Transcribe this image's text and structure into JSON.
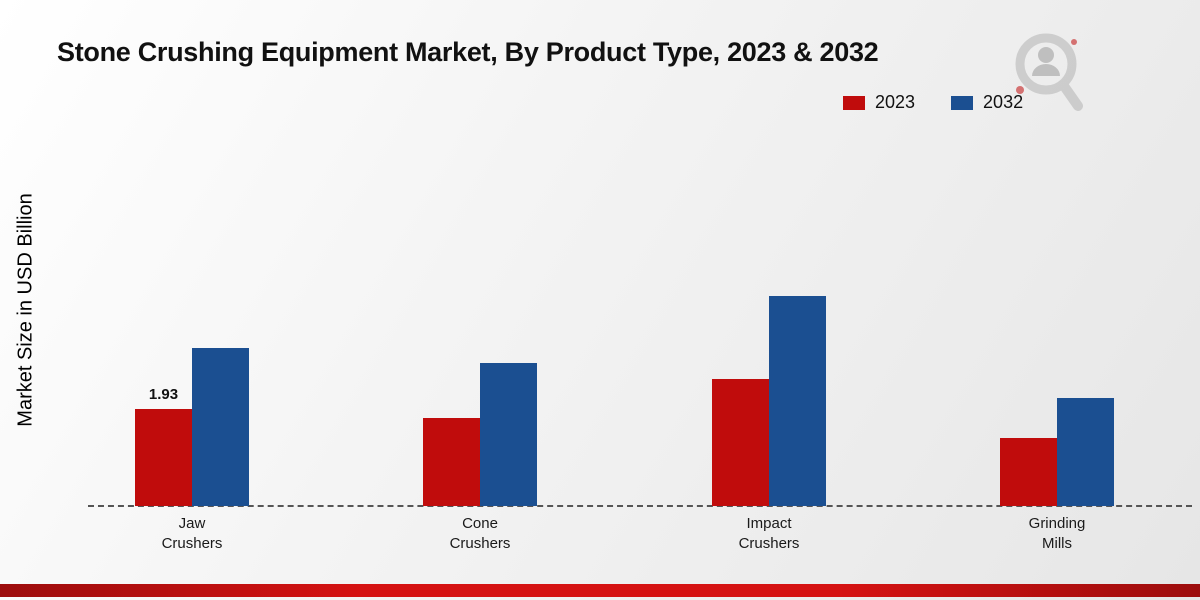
{
  "title": "Stone Crushing Equipment Market, By Product Type, 2023 & 2032",
  "ylabel": "Market Size in USD Billion",
  "legend": [
    {
      "label": "2023",
      "color": "#c00c0c"
    },
    {
      "label": "2032",
      "color": "#1b4f91"
    }
  ],
  "chart_data": {
    "type": "bar",
    "title": "Stone Crushing Equipment Market, By Product Type, 2023 & 2032",
    "xlabel": "",
    "ylabel": "Market Size in USD Billion",
    "categories": [
      "Jaw Crushers",
      "Cone Crushers",
      "Impact Crushers",
      "Grinding Mills"
    ],
    "series": [
      {
        "name": "2023",
        "color": "#c00c0c",
        "values": [
          1.93,
          1.75,
          2.55,
          1.35
        ]
      },
      {
        "name": "2032",
        "color": "#1b4f91",
        "values": [
          3.15,
          2.85,
          4.2,
          2.15
        ]
      }
    ],
    "value_labels": [
      {
        "series_index": 0,
        "category_index": 0,
        "text": "1.93"
      }
    ],
    "ylim": [
      0,
      4.6
    ],
    "grid": false,
    "legend_position": "top-right",
    "baseline_style": "dashed"
  }
}
